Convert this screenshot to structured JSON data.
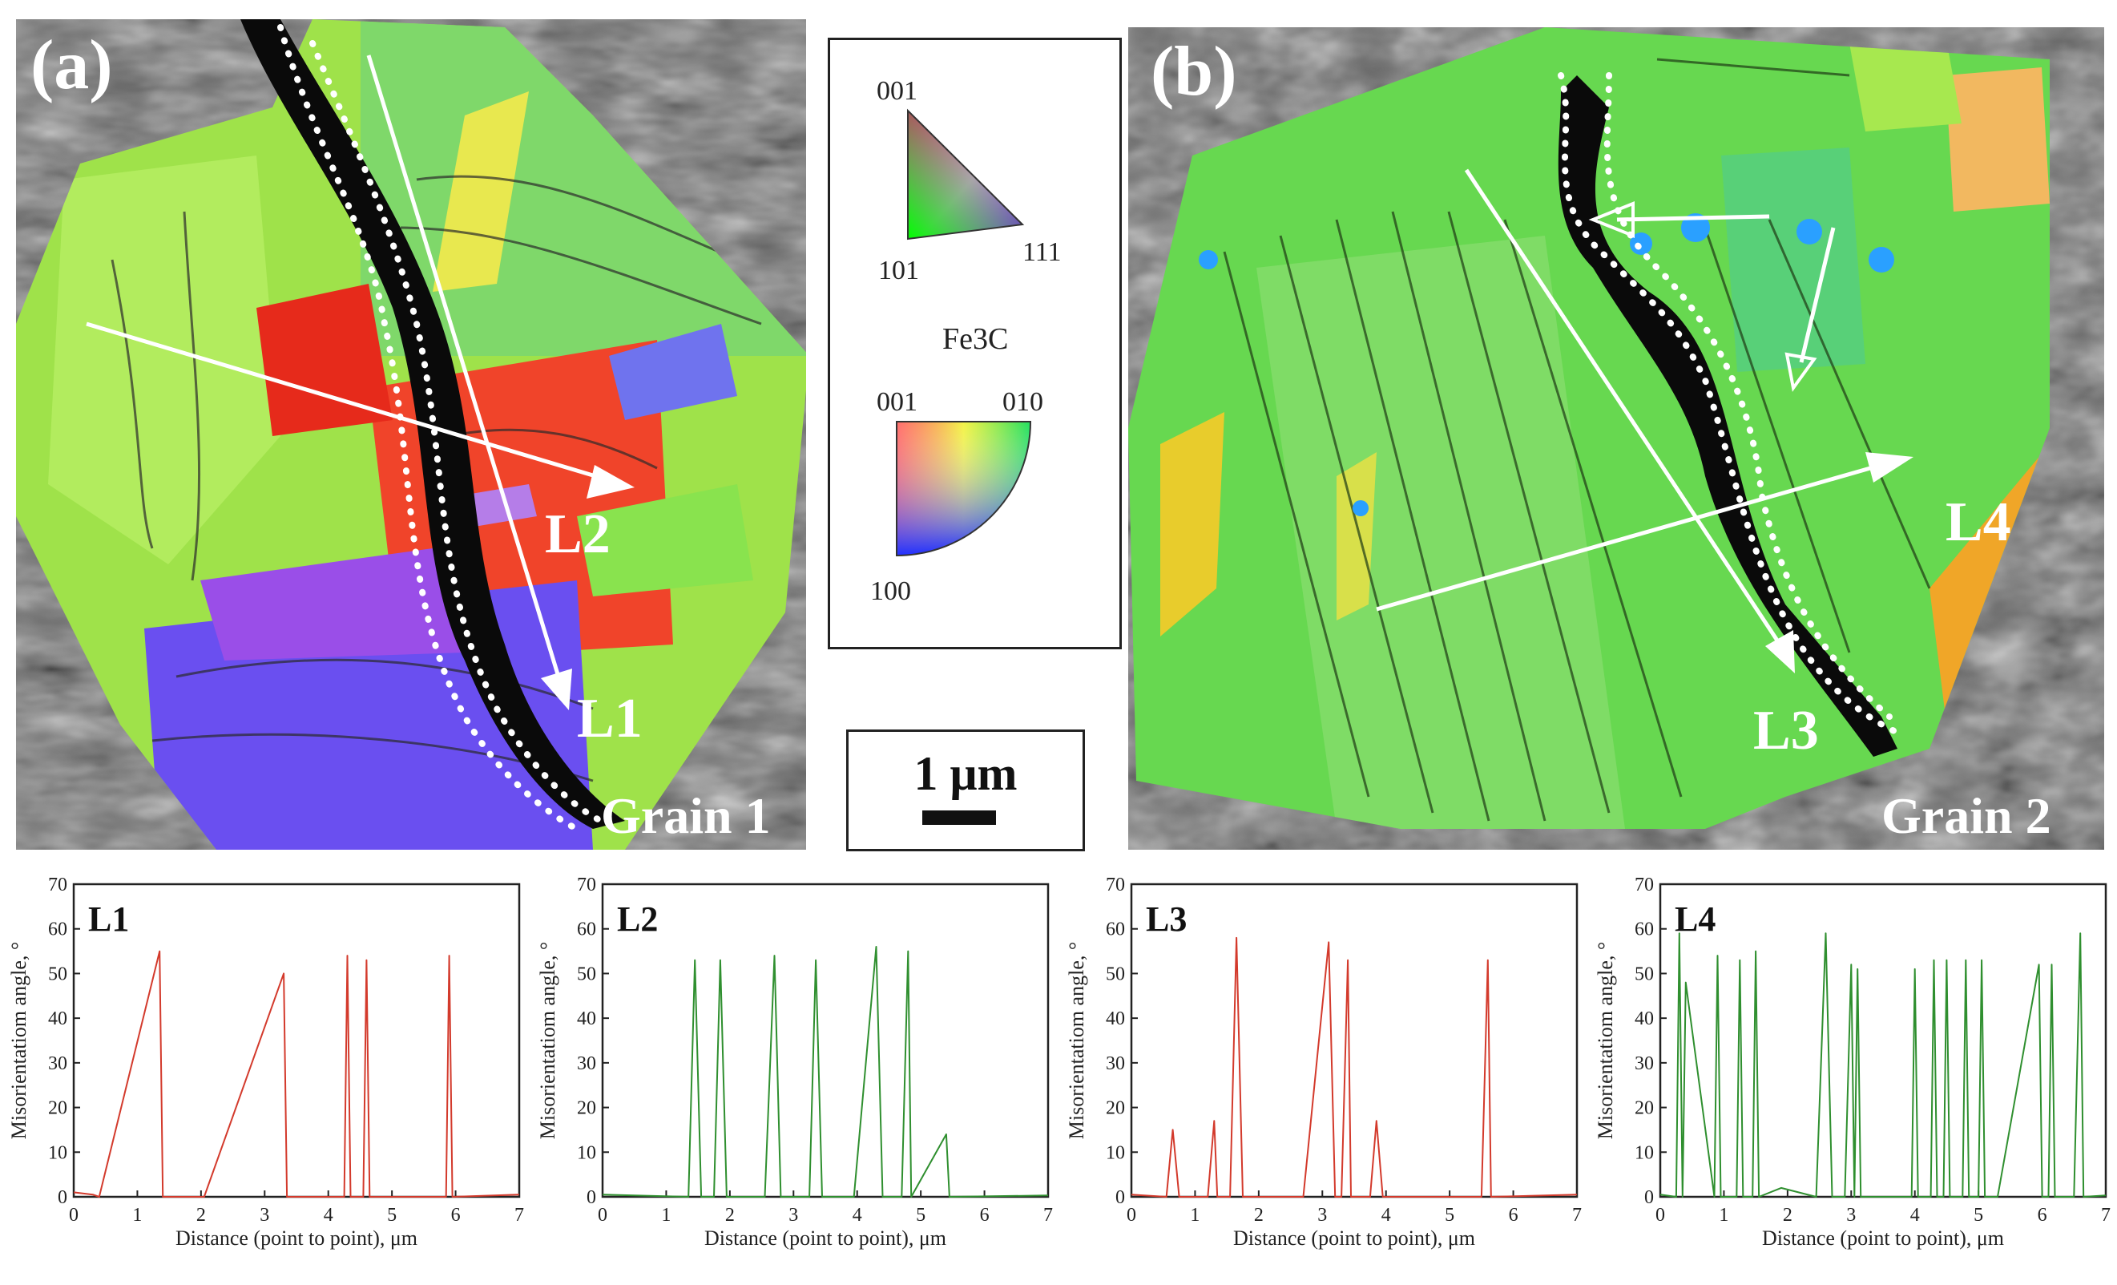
{
  "panel_a": {
    "label": "(a)",
    "grain_label": "Grain 1",
    "line_labels": [
      "L2",
      "L1"
    ]
  },
  "panel_b": {
    "label": "(b)",
    "grain_label": "Grain 2",
    "line_labels": [
      "L4",
      "L3"
    ]
  },
  "key": {
    "ferrite_top": "001",
    "ferrite_left": "101",
    "ferrite_right": "111",
    "phase": "Fe3C",
    "cementite_top_left": "001",
    "cementite_top_right": "010",
    "cementite_bottom": "100"
  },
  "scale_bar": {
    "label": "1 μm"
  },
  "chart_data": [
    {
      "type": "line",
      "title": "L1",
      "xlabel": "Distance (point to point), μm",
      "ylabel": "Misorientatiom angle, °",
      "xlim": [
        0,
        7
      ],
      "ylim": [
        0,
        70
      ],
      "xticks": [
        0,
        1,
        2,
        3,
        4,
        5,
        6,
        7
      ],
      "yticks": [
        0,
        10,
        20,
        30,
        40,
        50,
        60,
        70
      ],
      "color": "#d33a2c",
      "x": [
        0,
        0.3,
        0.4,
        1.35,
        1.4,
        2.05,
        3.3,
        3.35,
        4.25,
        4.3,
        4.35,
        4.55,
        4.6,
        4.65,
        5.85,
        5.9,
        5.95,
        7
      ],
      "y": [
        1,
        0.5,
        0,
        55,
        0,
        0,
        50,
        0,
        0,
        54,
        0,
        0,
        53,
        0,
        0,
        54,
        0,
        0.5
      ]
    },
    {
      "type": "line",
      "title": "L2",
      "xlabel": "Distance (point to point), μm",
      "ylabel": "Misorientatiom angle, °",
      "xlim": [
        0,
        7
      ],
      "ylim": [
        0,
        70
      ],
      "xticks": [
        0,
        1,
        2,
        3,
        4,
        5,
        6,
        7
      ],
      "yticks": [
        0,
        10,
        20,
        30,
        40,
        50,
        60,
        70
      ],
      "color": "#2f8f2f",
      "x": [
        0,
        1.35,
        1.45,
        1.55,
        1.75,
        1.85,
        1.95,
        2.55,
        2.7,
        2.8,
        3.25,
        3.35,
        3.45,
        3.95,
        4.3,
        4.4,
        4.7,
        4.8,
        4.85,
        5.4,
        5.45,
        7
      ],
      "y": [
        0.5,
        0,
        53,
        0,
        0,
        53,
        0,
        0,
        54,
        0,
        0,
        53,
        0,
        0,
        56,
        0,
        0,
        55,
        0,
        14,
        0,
        0.3
      ]
    },
    {
      "type": "line",
      "title": "L3",
      "xlabel": "Distance (point to point), μm",
      "ylabel": "Misorientatiom angle, °",
      "xlim": [
        0,
        7
      ],
      "ylim": [
        0,
        70
      ],
      "xticks": [
        0,
        1,
        2,
        3,
        4,
        5,
        6,
        7
      ],
      "yticks": [
        0,
        10,
        20,
        30,
        40,
        50,
        60,
        70
      ],
      "color": "#d33a2c",
      "x": [
        0,
        0.55,
        0.65,
        0.75,
        1.2,
        1.3,
        1.35,
        1.55,
        1.65,
        1.75,
        2.7,
        3.1,
        3.2,
        3.3,
        3.4,
        3.45,
        3.75,
        3.85,
        3.95,
        5.5,
        5.6,
        5.65,
        7
      ],
      "y": [
        0.5,
        0,
        15,
        0,
        0,
        17,
        0,
        0,
        58,
        0,
        0,
        57,
        0,
        0,
        53,
        0,
        0,
        17,
        0,
        0,
        53,
        0,
        0.5
      ]
    },
    {
      "type": "line",
      "title": "L4",
      "xlabel": "Distance (point to point), μm",
      "ylabel": "Misorientatiom angle, °",
      "xlim": [
        0,
        7
      ],
      "ylim": [
        0,
        70
      ],
      "xticks": [
        0,
        1,
        2,
        3,
        4,
        5,
        6,
        7
      ],
      "yticks": [
        0,
        10,
        20,
        30,
        40,
        50,
        60,
        70
      ],
      "color": "#2f8f2f",
      "x": [
        0,
        0.25,
        0.3,
        0.35,
        0.4,
        0.85,
        0.9,
        0.95,
        1.2,
        1.25,
        1.3,
        1.45,
        1.5,
        1.55,
        1.9,
        2.45,
        2.6,
        2.7,
        2.9,
        3.0,
        3.05,
        3.1,
        3.15,
        3.2,
        3.95,
        4.0,
        4.05,
        4.25,
        4.3,
        4.35,
        4.45,
        4.5,
        4.55,
        4.75,
        4.8,
        4.85,
        5.0,
        5.05,
        5.1,
        5.3,
        5.95,
        6.0,
        6.1,
        6.15,
        6.2,
        6.5,
        6.6,
        6.65,
        7
      ],
      "y": [
        0.5,
        0,
        59,
        0,
        48,
        0,
        54,
        0,
        0,
        53,
        0,
        0,
        55,
        0,
        2,
        0,
        59,
        0,
        0,
        52,
        0,
        51,
        0,
        0,
        0,
        51,
        0,
        0,
        53,
        0,
        0,
        53,
        0,
        0,
        53,
        0,
        0,
        53,
        0,
        0,
        52,
        0,
        0,
        52,
        0,
        0,
        59,
        0,
        0.3
      ]
    }
  ]
}
